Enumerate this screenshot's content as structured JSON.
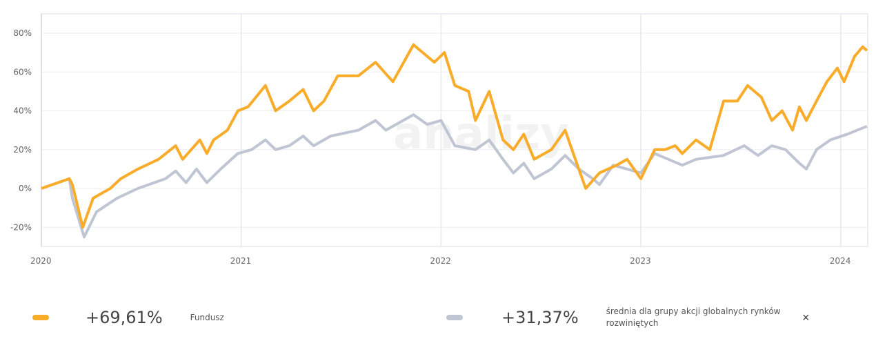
{
  "watermark": "analizy.pl",
  "chart_data": {
    "type": "line",
    "title": "",
    "xlabel": "",
    "ylabel": "",
    "x_unit": "years since 2020-01-01",
    "xlim": [
      0,
      4.131
    ],
    "ylim": [
      -30,
      90
    ],
    "yticks": [
      -20,
      0,
      20,
      40,
      60,
      80
    ],
    "ytick_labels": [
      "-20%",
      "0%",
      "20%",
      "40%",
      "60%",
      "80%"
    ],
    "xticks": [
      0,
      1,
      2,
      3,
      4
    ],
    "xtick_labels": [
      "2020",
      "2021",
      "2022",
      "2023",
      "2024"
    ],
    "grid": true,
    "series": [
      {
        "name": "Fundusz",
        "color": "#f9ab2a",
        "x": [
          0,
          0.14,
          0.155,
          0.207,
          0.259,
          0.345,
          0.397,
          0.483,
          0.586,
          0.672,
          0.707,
          0.793,
          0.828,
          0.862,
          0.931,
          0.983,
          1.034,
          1.121,
          1.172,
          1.241,
          1.31,
          1.362,
          1.414,
          1.483,
          1.586,
          1.672,
          1.759,
          1.862,
          1.966,
          2.017,
          2.069,
          2.138,
          2.172,
          2.241,
          2.31,
          2.362,
          2.414,
          2.466,
          2.552,
          2.621,
          2.672,
          2.724,
          2.793,
          2.879,
          2.931,
          3.0,
          3.069,
          3.121,
          3.172,
          3.207,
          3.276,
          3.345,
          3.414,
          3.483,
          3.534,
          3.603,
          3.655,
          3.707,
          3.759,
          3.793,
          3.828,
          3.879,
          3.931,
          3.983,
          4.017,
          4.069,
          4.11,
          4.131
        ],
        "y": [
          0,
          5,
          2,
          -20,
          -5,
          0,
          5,
          10,
          15,
          22,
          15,
          25,
          18,
          25,
          30,
          40,
          42,
          53,
          40,
          45,
          51,
          40,
          45,
          58,
          58,
          65,
          55,
          74,
          65,
          70,
          53,
          50,
          35,
          50,
          25,
          20,
          28,
          15,
          20,
          30,
          15,
          0,
          8,
          12,
          15,
          5,
          20,
          20,
          22,
          18,
          25,
          20,
          45,
          45,
          53,
          47,
          35,
          40,
          30,
          42,
          35,
          45,
          55,
          62,
          55,
          68,
          73,
          71
        ]
      },
      {
        "name": "średnia dla grupy akcji globalnych rynków rozwiniętych",
        "color": "#c0c5d3",
        "x": [
          0,
          0.14,
          0.155,
          0.214,
          0.276,
          0.379,
          0.483,
          0.621,
          0.672,
          0.724,
          0.776,
          0.828,
          0.897,
          0.983,
          1.052,
          1.121,
          1.172,
          1.241,
          1.31,
          1.362,
          1.448,
          1.586,
          1.672,
          1.724,
          1.862,
          1.931,
          2.0,
          2.069,
          2.172,
          2.241,
          2.31,
          2.362,
          2.414,
          2.466,
          2.552,
          2.621,
          2.69,
          2.759,
          2.793,
          2.862,
          2.931,
          3.0,
          3.069,
          3.138,
          3.207,
          3.276,
          3.414,
          3.517,
          3.586,
          3.655,
          3.724,
          3.793,
          3.828,
          3.879,
          3.948,
          4.034,
          4.131
        ],
        "y": [
          0,
          5,
          -5,
          -25,
          -12,
          -5,
          0,
          5,
          9,
          3,
          10,
          3,
          10,
          18,
          20,
          25,
          20,
          22,
          27,
          22,
          27,
          30,
          35,
          30,
          38,
          33,
          35,
          22,
          20,
          25,
          15,
          8,
          13,
          5,
          10,
          17,
          10,
          5,
          2,
          12,
          10,
          8,
          18,
          15,
          12,
          15,
          17,
          22,
          17,
          22,
          20,
          13,
          10,
          20,
          25,
          28,
          32
        ]
      }
    ],
    "legend_position": "bottom"
  },
  "legend": [
    {
      "value": "+69,61%",
      "label": "Fundusz"
    },
    {
      "value": "+31,37%",
      "label": "średnia dla grupy akcji globalnych rynków rozwiniętych"
    }
  ],
  "close_icon": "×"
}
